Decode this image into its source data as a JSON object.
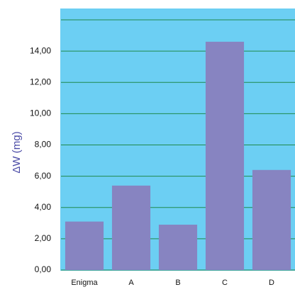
{
  "chart_data": {
    "type": "bar",
    "y_label": "ΔW (mg)",
    "categories": [
      "Enigma",
      "A",
      "B",
      "C",
      "D"
    ],
    "values": [
      3.1,
      5.4,
      2.9,
      14.6,
      6.4
    ],
    "color": "#8784c1",
    "ylim": [
      0,
      16
    ],
    "yticks": [
      {
        "value": 0,
        "label": "0,00"
      },
      {
        "value": 2,
        "label": "2,00"
      },
      {
        "value": 4,
        "label": "4,00"
      },
      {
        "value": 6,
        "label": "6,00"
      },
      {
        "value": 8,
        "label": "8,00"
      },
      {
        "value": 10,
        "label": "10,00"
      },
      {
        "value": 12,
        "label": "12,00"
      },
      {
        "value": 14,
        "label": "14,00"
      }
    ],
    "grid": true
  }
}
